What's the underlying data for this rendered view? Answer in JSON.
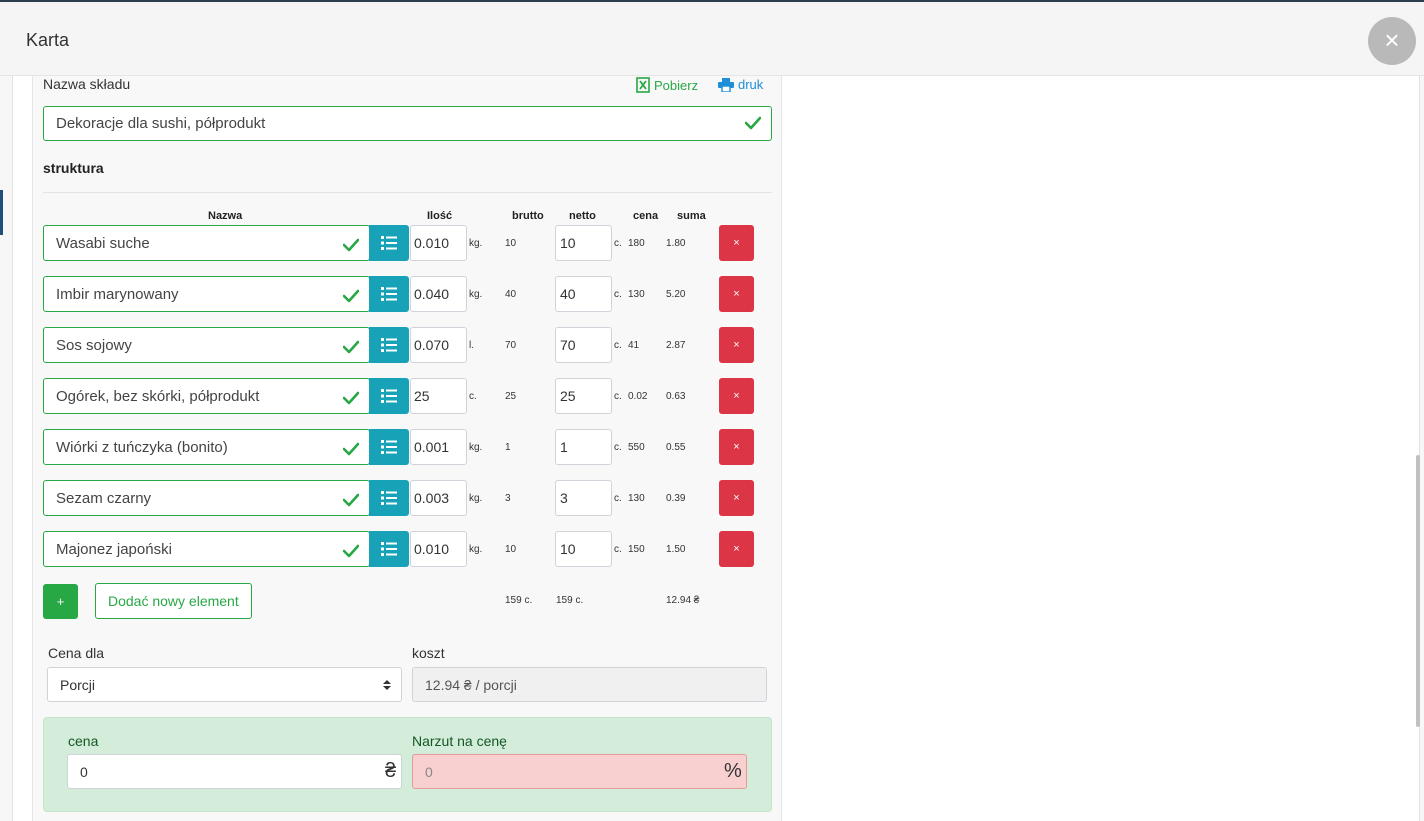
{
  "modal": {
    "title": "Karta",
    "close_symbol": "×"
  },
  "warehouse": {
    "label": "Nazwa składu",
    "value": "Dekoracje dla sushi, półprodukt",
    "download_label": "Pobierz",
    "print_label": "druk"
  },
  "structure": {
    "title": "struktura",
    "headers": {
      "name": "Nazwa",
      "qty": "Ilość",
      "brutto": "brutto",
      "netto": "netto",
      "price": "cena",
      "sum": "suma"
    },
    "rows": [
      {
        "name": "Wasabi suche",
        "qty": "0.010",
        "unit": "kg.",
        "brutto": "10",
        "netto": "10",
        "netto_unit": "c.",
        "price": "180",
        "sum": "1.80"
      },
      {
        "name": "Imbir marynowany",
        "qty": "0.040",
        "unit": "kg.",
        "brutto": "40",
        "netto": "40",
        "netto_unit": "c.",
        "price": "130",
        "sum": "5.20"
      },
      {
        "name": "Sos sojowy",
        "qty": "0.070",
        "unit": "l.",
        "brutto": "70",
        "netto": "70",
        "netto_unit": "c.",
        "price": "41",
        "sum": "2.87"
      },
      {
        "name": "Ogórek, bez skórki, półprodukt",
        "qty": "25",
        "unit": "c.",
        "brutto": "25",
        "netto": "25",
        "netto_unit": "c.",
        "price": "0.02",
        "sum": "0.63"
      },
      {
        "name": "Wiórki z tuńczyka (bonito)",
        "qty": "0.001",
        "unit": "kg.",
        "brutto": "1",
        "netto": "1",
        "netto_unit": "c.",
        "price": "550",
        "sum": "0.55"
      },
      {
        "name": "Sezam czarny",
        "qty": "0.003",
        "unit": "kg.",
        "brutto": "3",
        "netto": "3",
        "netto_unit": "c.",
        "price": "130",
        "sum": "0.39"
      },
      {
        "name": "Majonez japoński",
        "qty": "0.010",
        "unit": "kg.",
        "brutto": "10",
        "netto": "10",
        "netto_unit": "c.",
        "price": "150",
        "sum": "1.50"
      }
    ],
    "delete_symbol": "×",
    "add_symbol": "+",
    "add_new_label": "Dodać nowy element",
    "totals": {
      "brutto": "159 c.",
      "netto": "159 c.",
      "sum": "12.94 ₴"
    }
  },
  "pricing": {
    "price_for_label": "Cena dla",
    "price_for_value": "Porcji",
    "cost_label": "koszt",
    "cost_value": "12.94 ₴ / porcji",
    "price_label": "cena",
    "price_value": "0",
    "price_suffix": "₴",
    "markup_label": "Narzut na cenę",
    "markup_value": "0",
    "markup_suffix": "%"
  },
  "colors": {
    "green": "#28a745",
    "teal": "#17a2b8",
    "red": "#dc3545",
    "blue_link": "#1d8fd8"
  },
  "icons": {
    "excel": "excel-icon",
    "print": "print-icon",
    "check": "check-icon",
    "list": "list-icon",
    "close": "close-icon",
    "sort": "sort-icon"
  }
}
